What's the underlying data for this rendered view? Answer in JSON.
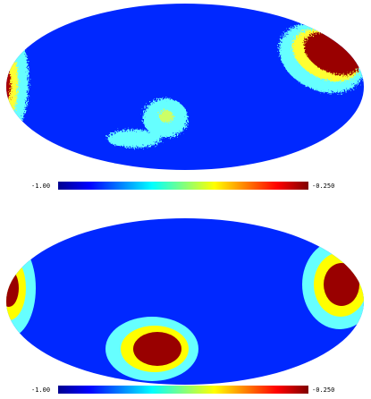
{
  "maps": [
    {
      "colorbar": {
        "min_label": "-1.00",
        "max_label": "-0.250"
      }
    },
    {
      "colorbar": {
        "min_label": "-1.00",
        "max_label": "-0.250"
      }
    }
  ]
}
